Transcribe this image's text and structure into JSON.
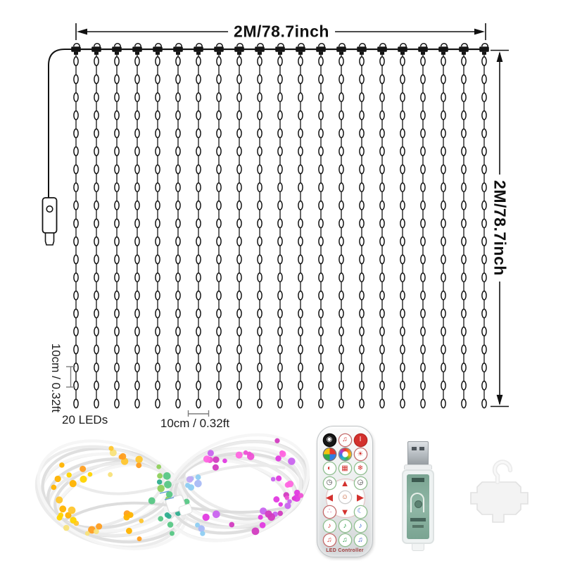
{
  "page": {
    "background": "#ffffff"
  },
  "diagram": {
    "width_label": "2M/78.7inch",
    "height_label": "2M/78.7inch",
    "led_count_label": "20 LEDs",
    "led_spacing_label": "10cm / 0.32ft",
    "drop_spacing_label": "10cm / 0.32ft",
    "string_count": 21,
    "leds_per_string": 20,
    "line_color": "#141414"
  },
  "coil": {
    "wire_color": "#ebebeb",
    "wire_shadow": "#dddddd",
    "wire_highlight": "#f6f6f6",
    "tie_color": "#ffffff",
    "left_colors": [
      "#ffd400",
      "#ffc62e",
      "#ffb300",
      "#ff9e1f",
      "#f8e27a"
    ],
    "left_accent_colors": [
      "#57c785",
      "#2fae8f",
      "#8fd05c"
    ],
    "right_colors": [
      "#e13ae0",
      "#ee52d5",
      "#c964ef",
      "#ff66e0",
      "#d23bc0"
    ],
    "right_accent_colors": [
      "#8ecdf2",
      "#a9baf5",
      "#bfa8f2"
    ]
  },
  "remote": {
    "label": "LED Controller",
    "rows": [
      [
        {
          "name": "power-button",
          "glyph": "◉",
          "fg": "#ffffff",
          "bg": "#161616",
          "ring": "#050505"
        },
        {
          "name": "music-mode-button",
          "glyph": "♫",
          "fg": "#d3312e",
          "bg": "#ffffff",
          "ring": "#c46a6a"
        },
        {
          "name": "on-off-button",
          "glyph": "I",
          "fg": "#ffffff",
          "bg": "#d3312e",
          "ring": "#b5241f"
        }
      ],
      [
        {
          "name": "rgb-mode-button",
          "style": "rgb-pie",
          "ring": "#666666"
        },
        {
          "name": "color-wheel-button",
          "style": "color-wheel",
          "ring": "#888888"
        },
        {
          "name": "flash-mode-button",
          "glyph": "☀",
          "fg": "#d3312e",
          "bg": "#ffffff",
          "ring": "#c46a6a"
        }
      ],
      [
        {
          "name": "fade-mode-button",
          "glyph": "◐",
          "fg": "#d3312e",
          "bg": "#ffffff",
          "ring": "#8fbf8f"
        },
        {
          "name": "display-mode-button",
          "glyph": "▦",
          "fg": "#d3312e",
          "bg": "#ffffff",
          "ring": "#8fbf8f"
        },
        {
          "name": "twinkle-mode-button",
          "glyph": "❄",
          "fg": "#d3312e",
          "bg": "#ffffff",
          "ring": "#8fbf8f"
        }
      ],
      [
        {
          "name": "speed-down-button",
          "glyph": "◷",
          "fg": "#444444",
          "bg": "#ffffff",
          "ring": "#8fbf8f"
        },
        {
          "name": "up-button",
          "glyph": "▲",
          "fg": "#d3312e",
          "style": "bare"
        },
        {
          "name": "speed-up-button",
          "glyph": "◶",
          "fg": "#444444",
          "bg": "#ffffff",
          "ring": "#8fbf8f"
        }
      ],
      [
        {
          "name": "left-button",
          "glyph": "◀",
          "fg": "#d3312e",
          "style": "bare"
        },
        {
          "name": "ok-button",
          "glyph": "☺",
          "fg": "#c2572b",
          "bg": "#ffffff",
          "ring": "#cccccc"
        },
        {
          "name": "right-button",
          "glyph": "▶",
          "fg": "#d3312e",
          "style": "bare"
        }
      ],
      [
        {
          "name": "auto-mode-button",
          "glyph": "∴",
          "fg": "#d3477e",
          "bg": "#ffffff",
          "ring": "#c46a6a"
        },
        {
          "name": "down-button",
          "glyph": "▼",
          "fg": "#d3312e",
          "style": "bare"
        },
        {
          "name": "moon-mode-button",
          "glyph": "☾",
          "fg": "#3f6fd1",
          "bg": "#ffffff",
          "ring": "#8fbf8f"
        }
      ],
      [
        {
          "name": "music-mode-1-button",
          "glyph": "♪",
          "fg": "#d3312e",
          "bg": "#ffffff",
          "ring": "#8fbf8f"
        },
        {
          "name": "music-mode-2-button",
          "glyph": "♪",
          "fg": "#2e9e4a",
          "bg": "#ffffff",
          "ring": "#8fbf8f"
        },
        {
          "name": "music-mode-3-button",
          "glyph": "♪",
          "fg": "#3f6fd1",
          "bg": "#ffffff",
          "ring": "#8fbf8f"
        }
      ],
      [
        {
          "name": "music-mode-4-button",
          "glyph": "♫",
          "fg": "#d3312e",
          "bg": "#ffffff",
          "ring": "#c46a6a"
        },
        {
          "name": "music-mode-5-button",
          "glyph": "♫",
          "fg": "#2e9e4a",
          "bg": "#ffffff",
          "ring": "#8fbf8f"
        },
        {
          "name": "music-mode-6-button",
          "glyph": "♫",
          "fg": "#3456c0",
          "bg": "#ffffff",
          "ring": "#8fbf8f"
        }
      ]
    ]
  },
  "usb": {
    "connector_color": "#c3c8cc",
    "body_color": "#eef2f2",
    "pcb_color": "#7fa893"
  },
  "hook": {
    "color": "#f3f3f3",
    "outline": "#e1e1e1"
  }
}
